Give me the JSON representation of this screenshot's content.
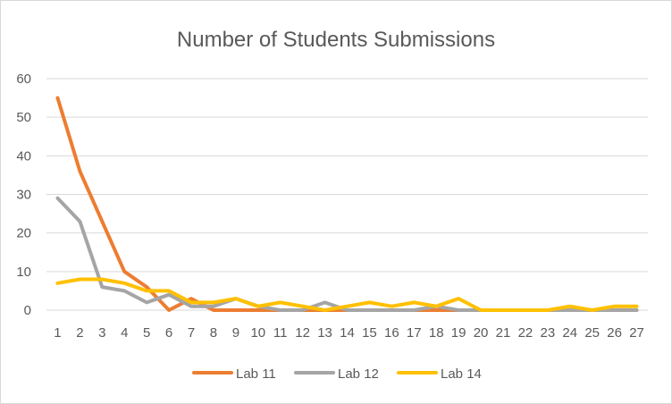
{
  "chart_data": {
    "type": "line",
    "title": "Number of Students Submissions",
    "xlabel": "",
    "ylabel": "",
    "x": [
      1,
      2,
      3,
      4,
      5,
      6,
      7,
      8,
      9,
      10,
      11,
      12,
      13,
      14,
      15,
      16,
      17,
      18,
      19,
      20,
      21,
      22,
      23,
      24,
      25,
      26,
      27
    ],
    "ylim": [
      0,
      60
    ],
    "yticks": [
      0,
      10,
      20,
      30,
      40,
      50,
      60
    ],
    "grid": true,
    "legend_position": "bottom",
    "series": [
      {
        "name": "Lab 11",
        "color": "#ed7d31",
        "values": [
          55,
          36,
          23,
          10,
          6,
          0,
          3,
          0,
          0,
          0,
          0,
          0,
          0,
          0,
          0,
          0,
          0,
          0,
          0,
          0,
          0,
          0,
          0,
          0,
          0,
          0,
          0
        ]
      },
      {
        "name": "Lab 12",
        "color": "#a5a5a5",
        "values": [
          29,
          23,
          6,
          5,
          2,
          4,
          1,
          1,
          3,
          1,
          0,
          0,
          2,
          0,
          0,
          0,
          0,
          1,
          0,
          0,
          0,
          0,
          0,
          0,
          0,
          0,
          0
        ]
      },
      {
        "name": "Lab 14",
        "color": "#ffc000",
        "values": [
          7,
          8,
          8,
          7,
          5,
          5,
          2,
          2,
          3,
          1,
          2,
          1,
          0,
          1,
          2,
          1,
          2,
          1,
          3,
          0,
          0,
          0,
          0,
          1,
          0,
          1,
          1
        ]
      }
    ]
  }
}
